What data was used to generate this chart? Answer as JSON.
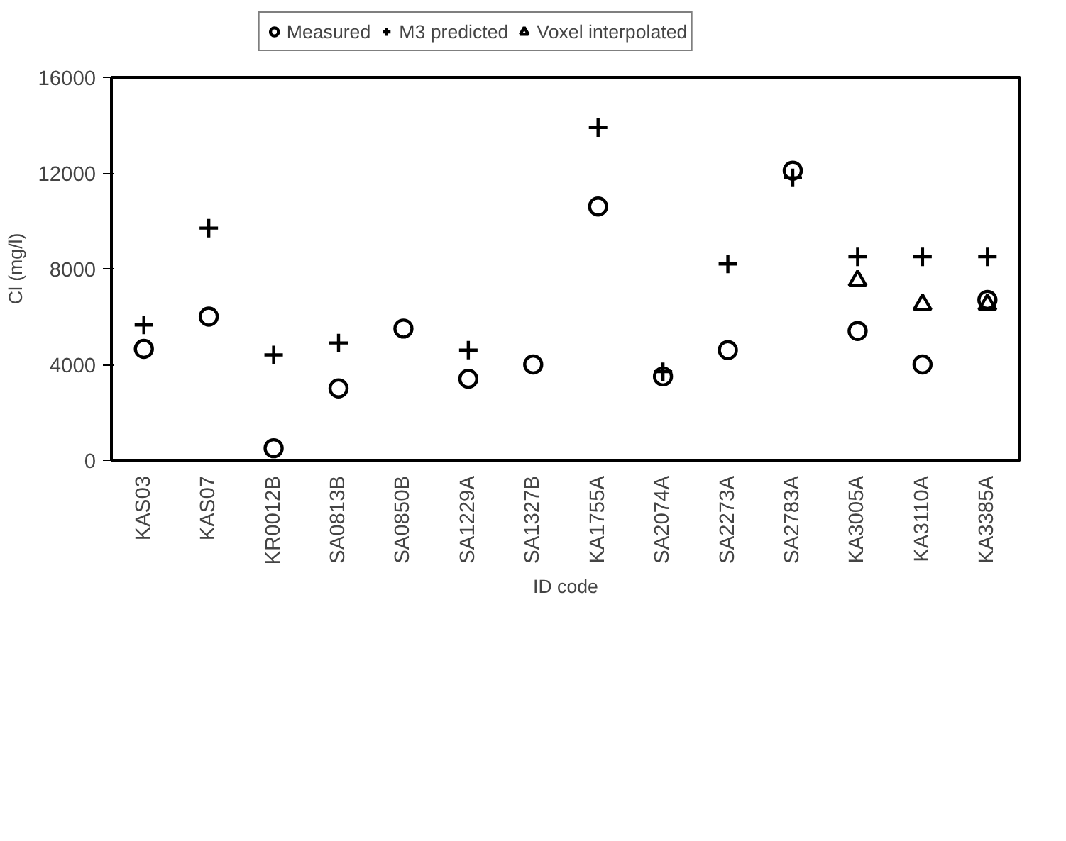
{
  "chart_data": {
    "type": "scatter",
    "xlabel": "ID code",
    "ylabel": "Cl (mg/l)",
    "categories": [
      "KAS03",
      "KAS07",
      "KR0012B",
      "SA0813B",
      "SA0850B",
      "SA1229A",
      "SA1327B",
      "KA1755A",
      "SA2074A",
      "SA2273A",
      "SA2783A",
      "KA3005A",
      "KA3110A",
      "KA3385A"
    ],
    "series": [
      {
        "name": "Measured",
        "color": "#000000",
        "marker": "circle",
        "values": [
          4650,
          6000,
          500,
          3000,
          5500,
          3400,
          4000,
          10600,
          3500,
          4600,
          12100,
          5400,
          4000,
          6700
        ]
      },
      {
        "name": "M3 predicted",
        "color": "#000000",
        "marker": "cross",
        "values": [
          5650,
          9700,
          4400,
          4900,
          null,
          4600,
          null,
          13900,
          3700,
          8200,
          11800,
          8500,
          8500,
          8500
        ]
      },
      {
        "name": "Voxel interpolated",
        "color": "#000000",
        "marker": "triangle",
        "values": [
          null,
          null,
          null,
          null,
          null,
          null,
          null,
          null,
          null,
          null,
          null,
          7500,
          6500,
          6500
        ]
      }
    ],
    "ylim": [
      0,
      16000
    ],
    "yticks": [
      0,
      4000,
      8000,
      12000,
      16000
    ],
    "grid": false,
    "legend": "top"
  }
}
